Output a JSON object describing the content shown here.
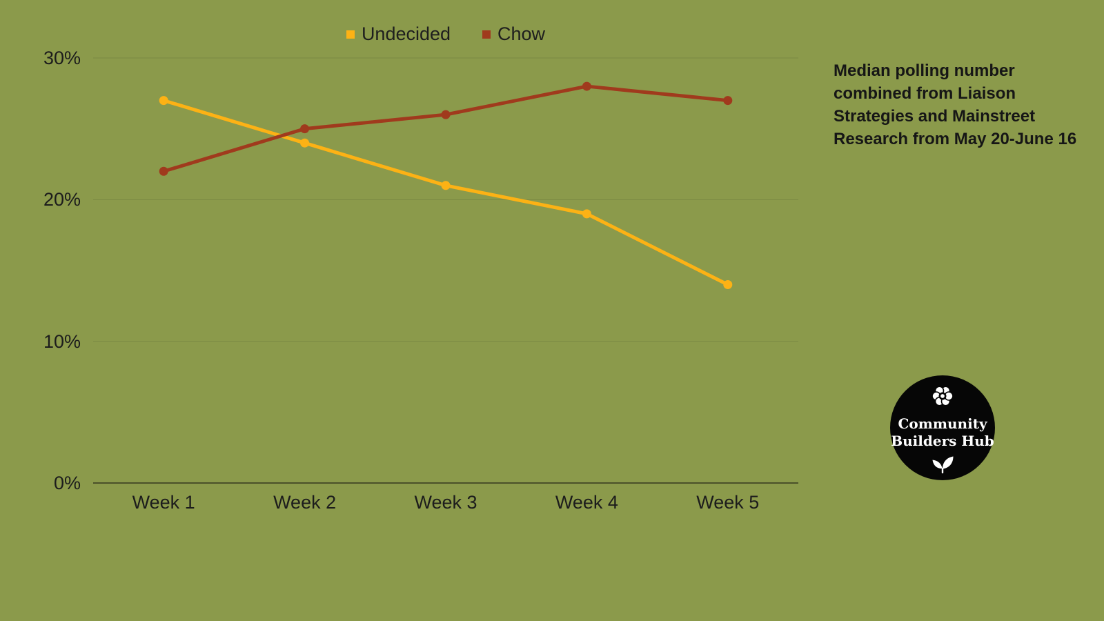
{
  "background_color": "#8b9a4b",
  "chart_data": {
    "type": "line",
    "categories": [
      "Week 1",
      "Week 2",
      "Week 3",
      "Week 4",
      "Week 5"
    ],
    "series": [
      {
        "name": "Undecided",
        "color": "#fcb215",
        "values": [
          27,
          24,
          21,
          19,
          14
        ]
      },
      {
        "name": "Chow",
        "color": "#a03a1d",
        "values": [
          22,
          25,
          26,
          28,
          27
        ]
      }
    ],
    "title": "",
    "xlabel": "",
    "ylabel": "",
    "ylim": [
      0,
      30
    ],
    "yticks": [
      0,
      10,
      20,
      30
    ],
    "ytick_labels": [
      "0%",
      "10%",
      "20%",
      "30%"
    ],
    "grid": true,
    "legend_position": "top",
    "grid_color": "#7b8a43",
    "axis_color": "#4a5029",
    "label_color": "#1c1c1c"
  },
  "annotation": {
    "text": "Median polling number combined from Liaison Strategies and Mainstreet Research from May 20-June 16"
  },
  "logo": {
    "line1": "Community",
    "line2": "Builders Hub",
    "bg_color": "#060606",
    "text_color": "#ffffff",
    "icons": [
      "flower-icon",
      "leaf-icon"
    ]
  }
}
